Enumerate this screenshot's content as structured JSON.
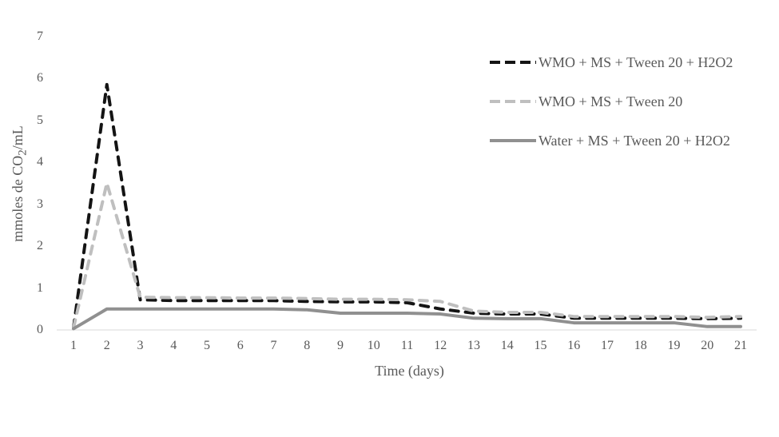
{
  "figure": {
    "background": "#ffffff",
    "text_color": "#595959",
    "axis_line_color": "#d9d9d9"
  },
  "chart_data": {
    "type": "line",
    "title": "",
    "xlabel": "Time (days)",
    "ylabel": "mmoles de CO2/mL",
    "ylabel_parts": {
      "pre": "mmoles de CO",
      "sub": "2",
      "post": "/mL"
    },
    "x": [
      1,
      2,
      3,
      4,
      5,
      6,
      7,
      8,
      9,
      10,
      11,
      12,
      13,
      14,
      15,
      16,
      17,
      18,
      19,
      20,
      21
    ],
    "x_ticks": [
      1,
      2,
      3,
      4,
      5,
      6,
      7,
      8,
      9,
      10,
      11,
      12,
      13,
      14,
      15,
      16,
      17,
      18,
      19,
      20,
      21
    ],
    "y_ticks": [
      0,
      1,
      2,
      3,
      4,
      5,
      6,
      7
    ],
    "xlim": [
      1,
      21
    ],
    "ylim": [
      0,
      7
    ],
    "grid": false,
    "legend_position": "upper-right",
    "series": [
      {
        "name": "WMO + MS + Tween 20 + H2O2",
        "color": "#141414",
        "line_style": "dashed",
        "values": [
          0.05,
          5.85,
          0.72,
          0.7,
          0.7,
          0.7,
          0.7,
          0.68,
          0.67,
          0.67,
          0.65,
          0.5,
          0.4,
          0.38,
          0.38,
          0.28,
          0.28,
          0.28,
          0.28,
          0.27,
          0.28
        ]
      },
      {
        "name": "WMO + MS + Tween 20",
        "color": "#bfbfbf",
        "line_style": "dashed",
        "values": [
          0.05,
          3.5,
          0.78,
          0.77,
          0.77,
          0.76,
          0.76,
          0.75,
          0.73,
          0.73,
          0.72,
          0.68,
          0.45,
          0.42,
          0.42,
          0.32,
          0.32,
          0.32,
          0.32,
          0.3,
          0.32
        ]
      },
      {
        "name": "Water + MS + Tween 20 + H2O2",
        "color": "#909090",
        "line_style": "solid",
        "values": [
          0.03,
          0.5,
          0.5,
          0.5,
          0.5,
          0.5,
          0.5,
          0.48,
          0.4,
          0.4,
          0.4,
          0.38,
          0.28,
          0.27,
          0.27,
          0.17,
          0.17,
          0.17,
          0.17,
          0.08,
          0.08
        ]
      }
    ]
  }
}
